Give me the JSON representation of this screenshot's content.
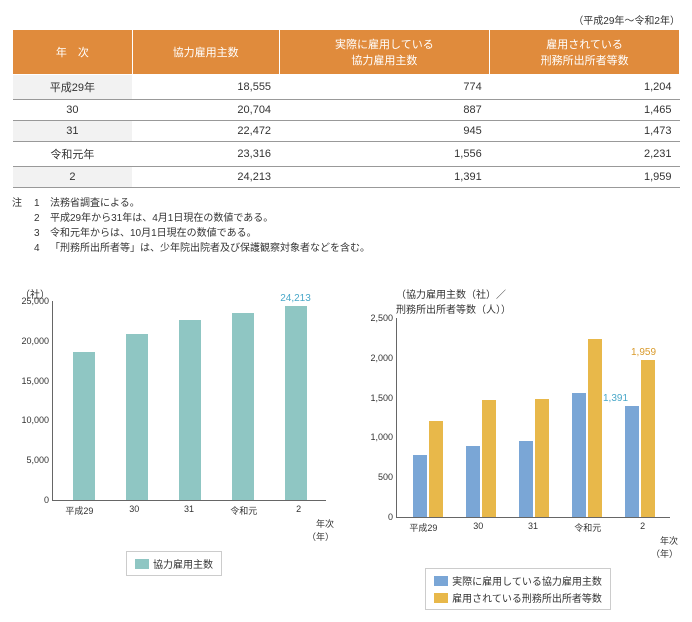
{
  "caption": "（平成29年～令和2年）",
  "table": {
    "headers": [
      "年　次",
      "協力雇用主数",
      "実際に雇用している\n協力雇用主数",
      "雇用されている\n刑務所出所者等数"
    ],
    "rows": [
      [
        "平成29年",
        "18,555",
        "774",
        "1,204"
      ],
      [
        "30",
        "20,704",
        "887",
        "1,465"
      ],
      [
        "31",
        "22,472",
        "945",
        "1,473"
      ],
      [
        "令和元年",
        "23,316",
        "1,556",
        "2,231"
      ],
      [
        "2",
        "24,213",
        "1,391",
        "1,959"
      ]
    ]
  },
  "notes": {
    "lead": "注",
    "items": [
      {
        "n": "1",
        "t": "法務省調査による。"
      },
      {
        "n": "2",
        "t": "平成29年から31年は、4月1日現在の数値である。"
      },
      {
        "n": "3",
        "t": "令和元年からは、10月1日現在の数値である。"
      },
      {
        "n": "4",
        "t": "「刑務所出所者等」は、少年院出院者及び保護観察対象者などを含む。"
      }
    ]
  },
  "chart_left": {
    "type": "bar",
    "ylabel": "（社）",
    "ymax": 25000,
    "yticks": [
      0,
      5000,
      10000,
      15000,
      20000,
      25000
    ],
    "ytick_labels": [
      "0",
      "5,000",
      "10,000",
      "15,000",
      "20,000",
      "25,000"
    ],
    "categories": [
      "平成29",
      "30",
      "31",
      "令和元",
      "2"
    ],
    "values": [
      18555,
      20704,
      22472,
      23316,
      24213
    ],
    "bar_color": "#8fc6c3",
    "highlight": {
      "index": 4,
      "label": "24,213",
      "color": "#4aa8c9"
    },
    "xaxis_label": "年次\n（年）",
    "legend": [
      {
        "color": "#8fc6c3",
        "label": "協力雇用主数"
      }
    ]
  },
  "chart_right": {
    "type": "grouped-bar",
    "title": "（協力雇用主数（社）／\n刑務所出所者等数（人））",
    "ymax": 2500,
    "yticks": [
      0,
      500,
      1000,
      1500,
      2000,
      2500
    ],
    "ytick_labels": [
      "0",
      "500",
      "1,000",
      "1,500",
      "2,000",
      "2,500"
    ],
    "categories": [
      "平成29",
      "30",
      "31",
      "令和元",
      "2"
    ],
    "series": [
      {
        "color": "#7aa6d6",
        "label": "実際に雇用している協力雇用主数",
        "values": [
          774,
          887,
          945,
          1556,
          1391
        ]
      },
      {
        "color": "#e8b84a",
        "label": "雇用されている刑務所出所者等数",
        "values": [
          1204,
          1465,
          1473,
          2231,
          1959
        ]
      }
    ],
    "highlights": [
      {
        "label": "1,391",
        "color": "#4aa8c9"
      },
      {
        "label": "1,959",
        "color": "#d99a2b"
      }
    ],
    "xaxis_label": "年次\n（年）"
  }
}
